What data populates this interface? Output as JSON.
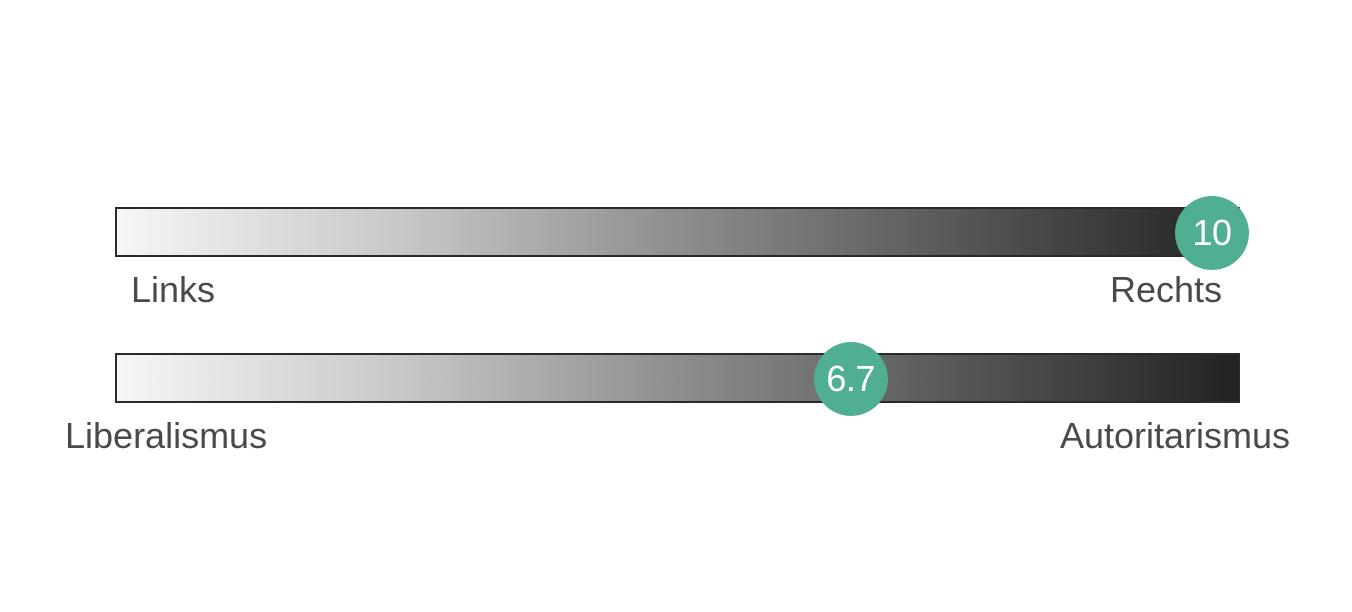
{
  "chart_data": {
    "type": "bar",
    "scales": [
      {
        "left_label": "Links",
        "right_label": "Rechts",
        "value": 10,
        "value_label": "10",
        "range": [
          0,
          10
        ]
      },
      {
        "left_label": "Liberalismus",
        "right_label": "Autoritarismus",
        "value": 6.7,
        "value_label": "6.7",
        "range": [
          0,
          10
        ]
      }
    ],
    "colors": {
      "marker": "#4fae94",
      "bar_light": "#f6f6f6",
      "bar_dark": "#222222",
      "label": "#4a4a4a"
    }
  }
}
